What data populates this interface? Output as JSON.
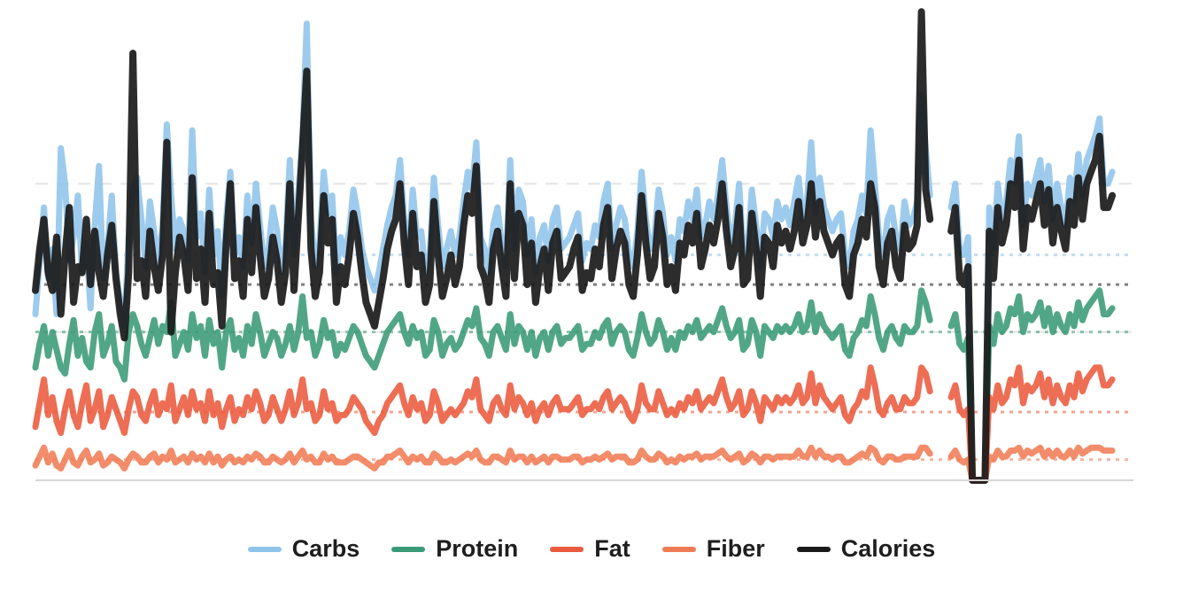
{
  "chart_data": {
    "type": "line",
    "title": "",
    "xlabel": "",
    "ylabel": "",
    "ylim": [
      0,
      1500
    ],
    "x_count": 260,
    "gap": [
      212,
      215
    ],
    "grid": "dashed horizontal",
    "legend_position": "bottom-center",
    "series": [
      {
        "name": "Carbs",
        "color": "#8fc4ea",
        "mean_level": 760,
        "values": [
          560,
          740,
          920,
          680,
          780,
          560,
          1120,
          1000,
          740,
          820,
          960,
          700,
          800,
          580,
          860,
          1060,
          680,
          780,
          960,
          700,
          600,
          520,
          820,
          980,
          1020,
          880,
          720,
          940,
          840,
          720,
          860,
          1200,
          960,
          780,
          880,
          840,
          740,
          1180,
          820,
          900,
          700,
          980,
          760,
          840,
          620,
          880,
          1040,
          760,
          820,
          720,
          960,
          800,
          1000,
          860,
          720,
          780,
          920,
          840,
          700,
          800,
          1080,
          760,
          960,
          1160,
          1540,
          880,
          720,
          800,
          1040,
          900,
          960,
          700,
          820,
          760,
          840,
          980,
          900,
          780,
          720,
          680,
          640,
          700,
          780,
          860,
          920,
          960,
          1080,
          880,
          760,
          980,
          820,
          840,
          700,
          760,
          1020,
          860,
          720,
          780,
          840,
          760,
          820,
          940,
          1040,
          980,
          1140,
          820,
          780,
          700,
          860,
          920,
          800,
          720,
          1080,
          780,
          980,
          940,
          760,
          880,
          700,
          820,
          860,
          740,
          880,
          920,
          780,
          800,
          820,
          860,
          900,
          740,
          800,
          780,
          860,
          820,
          940,
          1000,
          780,
          860,
          920,
          880,
          760,
          720,
          840,
          1040,
          880,
          780,
          820,
          980,
          900,
          760,
          820,
          740,
          880,
          840,
          940,
          880,
          980,
          820,
          860,
          940,
          880,
          960,
          1080,
          920,
          800,
          860,
          1000,
          760,
          780,
          980,
          860,
          720,
          900,
          880,
          820,
          940,
          880,
          920,
          860,
          940,
          1020,
          880,
          940,
          1140,
          900,
          1020,
          920,
          880,
          840,
          880,
          900,
          760,
          720,
          840,
          880,
          960,
          900,
          1180,
          1000,
          820,
          760,
          880,
          920,
          820,
          780,
          940,
          860,
          880,
          940,
          1300,
          1120,
          960,
          1020,
          900,
          840,
          880,
          920,
          1000,
          780,
          760,
          820,
          0,
          0,
          0,
          0,
          920,
          780,
          1000,
          880,
          940,
          1080,
          1000,
          1160,
          860,
          1000,
          960,
          1020,
          1080,
          940,
          1060,
          880,
          1000,
          920,
          860,
          1020,
          940,
          1100,
          960,
          1080,
          1120,
          1160,
          1220,
          1000,
          1000,
          1040
        ]
      },
      {
        "name": "Protein",
        "color": "#3a9a78",
        "mean_level": 500,
        "values": [
          380,
          460,
          520,
          420,
          500,
          440,
          380,
          360,
          460,
          540,
          420,
          480,
          400,
          380,
          500,
          560,
          420,
          460,
          520,
          400,
          380,
          340,
          500,
          560,
          520,
          460,
          420,
          480,
          540,
          460,
          520,
          500,
          600,
          420,
          460,
          500,
          440,
          560,
          480,
          520,
          420,
          540,
          460,
          500,
          380,
          500,
          540,
          440,
          480,
          420,
          520,
          460,
          560,
          500,
          420,
          460,
          500,
          480,
          420,
          460,
          520,
          440,
          500,
          620,
          480,
          500,
          420,
          460,
          540,
          480,
          500,
          420,
          460,
          440,
          480,
          520,
          500,
          460,
          420,
          400,
          380,
          420,
          460,
          500,
          520,
          540,
          560,
          500,
          460,
          520,
          480,
          500,
          420,
          440,
          540,
          500,
          420,
          460,
          480,
          440,
          460,
          500,
          540,
          520,
          580,
          480,
          460,
          420,
          500,
          520,
          480,
          440,
          560,
          460,
          520,
          500,
          440,
          500,
          420,
          480,
          500,
          440,
          500,
          520,
          460,
          480,
          480,
          500,
          520,
          440,
          460,
          460,
          500,
          480,
          520,
          540,
          460,
          500,
          520,
          500,
          440,
          420,
          480,
          560,
          500,
          460,
          480,
          540,
          500,
          440,
          480,
          440,
          500,
          480,
          520,
          500,
          540,
          480,
          500,
          520,
          500,
          540,
          580,
          520,
          480,
          500,
          540,
          440,
          460,
          540,
          500,
          420,
          520,
          500,
          480,
          520,
          500,
          520,
          500,
          520,
          560,
          500,
          520,
          600,
          500,
          560,
          520,
          500,
          480,
          500,
          520,
          440,
          420,
          480,
          500,
          540,
          520,
          620,
          560,
          480,
          440,
          500,
          520,
          480,
          460,
          520,
          500,
          500,
          520,
          640,
          600,
          540,
          560,
          500,
          480,
          500,
          520,
          560,
          460,
          440,
          480,
          0,
          0,
          0,
          0,
          520,
          460,
          560,
          500,
          520,
          580,
          560,
          620,
          500,
          560,
          540,
          560,
          600,
          520,
          580,
          500,
          560,
          520,
          500,
          560,
          520,
          600,
          540,
          580,
          600,
          620,
          640,
          560,
          560,
          580
        ]
      },
      {
        "name": "Fat",
        "color": "#ea5a3c",
        "mean_level": 230,
        "values": [
          180,
          260,
          340,
          220,
          280,
          200,
          160,
          240,
          300,
          220,
          180,
          260,
          320,
          200,
          240,
          300,
          180,
          220,
          280,
          240,
          200,
          160,
          240,
          300,
          280,
          220,
          200,
          260,
          300,
          220,
          260,
          240,
          320,
          200,
          240,
          280,
          220,
          300,
          240,
          260,
          200,
          300,
          220,
          260,
          180,
          240,
          280,
          200,
          240,
          220,
          280,
          240,
          300,
          260,
          200,
          220,
          280,
          240,
          200,
          240,
          300,
          220,
          260,
          340,
          240,
          260,
          200,
          220,
          300,
          240,
          260,
          200,
          220,
          220,
          240,
          280,
          260,
          240,
          200,
          180,
          160,
          200,
          220,
          260,
          280,
          300,
          320,
          260,
          220,
          280,
          240,
          260,
          200,
          220,
          300,
          260,
          200,
          220,
          240,
          220,
          240,
          260,
          300,
          280,
          340,
          240,
          220,
          200,
          260,
          280,
          240,
          220,
          320,
          240,
          280,
          260,
          220,
          260,
          200,
          240,
          260,
          220,
          260,
          280,
          240,
          240,
          240,
          260,
          280,
          220,
          240,
          240,
          260,
          240,
          280,
          300,
          240,
          260,
          280,
          260,
          220,
          200,
          240,
          320,
          260,
          240,
          240,
          300,
          260,
          220,
          240,
          220,
          260,
          240,
          280,
          260,
          300,
          240,
          260,
          280,
          260,
          300,
          340,
          280,
          240,
          260,
          300,
          220,
          240,
          300,
          260,
          200,
          280,
          260,
          240,
          280,
          260,
          280,
          260,
          280,
          320,
          260,
          280,
          360,
          260,
          320,
          280,
          260,
          240,
          260,
          280,
          220,
          200,
          240,
          260,
          300,
          280,
          380,
          320,
          240,
          220,
          260,
          280,
          240,
          240,
          280,
          260,
          260,
          280,
          380,
          360,
          300,
          320,
          260,
          240,
          260,
          280,
          320,
          240,
          220,
          240,
          0,
          0,
          0,
          0,
          280,
          240,
          320,
          260,
          280,
          340,
          320,
          380,
          260,
          320,
          300,
          320,
          360,
          280,
          340,
          260,
          320,
          280,
          260,
          320,
          280,
          360,
          300,
          340,
          360,
          380,
          380,
          320,
          320,
          340
        ]
      },
      {
        "name": "Fiber",
        "color": "#f07c55",
        "mean_level": 70,
        "values": [
          50,
          80,
          110,
          60,
          90,
          50,
          40,
          70,
          100,
          60,
          50,
          80,
          100,
          60,
          70,
          90,
          50,
          60,
          80,
          70,
          60,
          40,
          70,
          90,
          80,
          60,
          60,
          80,
          90,
          60,
          80,
          70,
          100,
          60,
          70,
          80,
          60,
          90,
          70,
          80,
          60,
          90,
          60,
          80,
          50,
          70,
          80,
          60,
          70,
          60,
          80,
          70,
          90,
          80,
          60,
          60,
          80,
          70,
          60,
          70,
          90,
          60,
          80,
          100,
          70,
          80,
          60,
          60,
          90,
          70,
          80,
          60,
          60,
          60,
          70,
          80,
          80,
          70,
          60,
          50,
          40,
          60,
          60,
          80,
          80,
          90,
          100,
          80,
          60,
          80,
          70,
          80,
          60,
          60,
          90,
          80,
          60,
          60,
          70,
          60,
          70,
          80,
          90,
          80,
          100,
          70,
          60,
          60,
          80,
          80,
          70,
          60,
          100,
          70,
          80,
          80,
          60,
          80,
          60,
          70,
          80,
          60,
          80,
          80,
          70,
          70,
          70,
          80,
          80,
          60,
          70,
          70,
          80,
          70,
          80,
          90,
          70,
          80,
          80,
          80,
          60,
          60,
          70,
          100,
          80,
          70,
          70,
          90,
          80,
          60,
          70,
          60,
          80,
          70,
          80,
          80,
          90,
          70,
          80,
          80,
          80,
          90,
          100,
          80,
          70,
          80,
          90,
          60,
          70,
          90,
          80,
          60,
          80,
          80,
          70,
          80,
          80,
          80,
          80,
          80,
          100,
          80,
          80,
          110,
          80,
          100,
          80,
          80,
          70,
          80,
          80,
          60,
          60,
          70,
          80,
          90,
          80,
          110,
          100,
          70,
          60,
          80,
          80,
          70,
          70,
          80,
          80,
          80,
          80,
          110,
          110,
          90,
          100,
          80,
          70,
          80,
          80,
          100,
          70,
          60,
          70,
          0,
          0,
          0,
          0,
          80,
          70,
          100,
          80,
          80,
          100,
          100,
          110,
          80,
          100,
          90,
          100,
          110,
          80,
          100,
          80,
          100,
          80,
          80,
          100,
          80,
          110,
          90,
          100,
          110,
          110,
          110,
          100,
          100,
          100
        ]
      },
      {
        "name": "Calories",
        "color": "#1a1a1a",
        "mean_level": 660,
        "values": [
          640,
          780,
          880,
          700,
          640,
          820,
          560,
          760,
          920,
          600,
          720,
          700,
          880,
          660,
          840,
          700,
          620,
          760,
          860,
          680,
          560,
          480,
          700,
          1440,
          680,
          740,
          620,
          840,
          720,
          640,
          760,
          1140,
          500,
          700,
          820,
          760,
          640,
          1020,
          680,
          780,
          600,
          900,
          660,
          700,
          520,
          800,
          1000,
          680,
          740,
          620,
          880,
          700,
          920,
          760,
          620,
          680,
          820,
          740,
          600,
          700,
          1000,
          640,
          880,
          1120,
          1380,
          780,
          620,
          700,
          960,
          800,
          880,
          600,
          720,
          660,
          760,
          900,
          820,
          700,
          600,
          560,
          520,
          600,
          680,
          780,
          840,
          880,
          1000,
          800,
          660,
          900,
          720,
          760,
          600,
          660,
          940,
          760,
          620,
          680,
          760,
          660,
          720,
          860,
          960,
          900,
          1060,
          720,
          680,
          600,
          780,
          840,
          720,
          620,
          1000,
          680,
          900,
          860,
          660,
          800,
          600,
          720,
          780,
          640,
          800,
          840,
          680,
          700,
          720,
          780,
          820,
          640,
          700,
          680,
          780,
          720,
          860,
          920,
          680,
          780,
          840,
          800,
          660,
          620,
          760,
          960,
          800,
          680,
          720,
          900,
          820,
          660,
          720,
          640,
          800,
          760,
          860,
          800,
          900,
          720,
          780,
          860,
          800,
          880,
          1000,
          840,
          720,
          780,
          920,
          660,
          680,
          900,
          780,
          620,
          820,
          800,
          720,
          860,
          800,
          840,
          780,
          840,
          940,
          800,
          860,
          1000,
          820,
          940,
          840,
          800,
          760,
          800,
          820,
          660,
          620,
          760,
          800,
          880,
          820,
          1000,
          920,
          720,
          660,
          800,
          840,
          720,
          680,
          860,
          780,
          800,
          860,
          1580,
          980,
          880,
          940,
          820,
          760,
          800,
          840,
          920,
          680,
          660,
          720,
          0,
          0,
          0,
          0,
          840,
          680,
          920,
          800,
          860,
          1000,
          920,
          1080,
          780,
          920,
          880,
          940,
          1000,
          860,
          980,
          800,
          920,
          840,
          780,
          940,
          860,
          1020,
          880,
          1000,
          1040,
          1080,
          1160,
          920,
          920,
          960
        ]
      }
    ]
  }
}
